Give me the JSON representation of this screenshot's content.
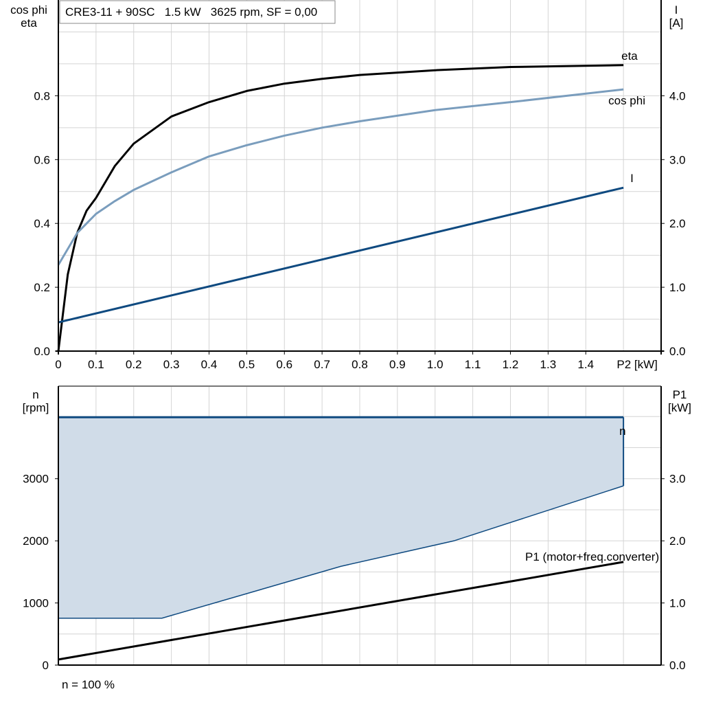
{
  "chart_data": [
    {
      "type": "line",
      "title": "CRE3-11 + 90SC   1.5 kW   3625 rpm, SF = 0,00",
      "ylabel_left": [
        "cos phi",
        "eta"
      ],
      "ylabel_right": [
        "I",
        "[A]"
      ],
      "xlabel": "P2 [kW]",
      "xlim": [
        0,
        1.6
      ],
      "ylim_left": [
        0,
        1.1
      ],
      "ylim_right": [
        0,
        5.5
      ],
      "xticks": [
        "0",
        "0.1",
        "0.2",
        "0.3",
        "0.4",
        "0.5",
        "0.6",
        "0.7",
        "0.8",
        "0.9",
        "1.0",
        "1.1",
        "1.2",
        "1.3",
        "1.4"
      ],
      "yticks_left": [
        "0.0",
        "0.2",
        "0.4",
        "0.6",
        "0.8"
      ],
      "yticks_right": [
        "0.0",
        "1.0",
        "2.0",
        "3.0",
        "4.0"
      ],
      "grid": true,
      "series": [
        {
          "name": "eta",
          "axis": "left",
          "color": "#000000",
          "x": [
            0,
            0.025,
            0.05,
            0.075,
            0.1,
            0.15,
            0.2,
            0.3,
            0.4,
            0.5,
            0.6,
            0.7,
            0.8,
            1.0,
            1.2,
            1.5
          ],
          "y": [
            0,
            0.24,
            0.37,
            0.44,
            0.48,
            0.58,
            0.65,
            0.735,
            0.78,
            0.815,
            0.838,
            0.853,
            0.865,
            0.88,
            0.89,
            0.896
          ]
        },
        {
          "name": "cos phi",
          "axis": "left",
          "color": "#7a9dbd",
          "x": [
            0,
            0.05,
            0.1,
            0.15,
            0.2,
            0.3,
            0.4,
            0.5,
            0.6,
            0.7,
            0.8,
            1.0,
            1.2,
            1.5
          ],
          "y": [
            0.27,
            0.37,
            0.43,
            0.47,
            0.505,
            0.56,
            0.61,
            0.645,
            0.675,
            0.7,
            0.72,
            0.755,
            0.78,
            0.82
          ]
        },
        {
          "name": "I",
          "axis": "right",
          "color": "#0f4a80",
          "x": [
            0,
            1.5
          ],
          "y": [
            0.45,
            2.56
          ]
        }
      ]
    },
    {
      "type": "area",
      "ylabel_left": [
        "n",
        "[rpm]"
      ],
      "ylabel_right": [
        "P1",
        "[kW]"
      ],
      "xlim": [
        0,
        1.6
      ],
      "ylim_left": [
        0,
        4490
      ],
      "ylim_right": [
        0,
        4.49
      ],
      "yticks_left": [
        "0",
        "1000",
        "2000",
        "3000"
      ],
      "yticks_right": [
        "0.0",
        "1.0",
        "2.0",
        "3.0"
      ],
      "grid": true,
      "footnote": "n = 100 %",
      "series": [
        {
          "name": "n",
          "axis": "left",
          "color": "#0f4a80",
          "fill": "#d0dce8",
          "upper": {
            "x": [
              0,
              1.5
            ],
            "y": [
              3990,
              3990
            ]
          },
          "lower": {
            "x": [
              0,
              0.275,
              0.75,
              1.05,
              1.5
            ],
            "y": [
              755,
              755,
              1590,
              2000,
              2885
            ]
          }
        },
        {
          "name": "P1 (motor+freq.converter)",
          "axis": "right",
          "color": "#000000",
          "x": [
            0,
            1.5
          ],
          "y": [
            0.09,
            1.66
          ]
        }
      ]
    }
  ]
}
